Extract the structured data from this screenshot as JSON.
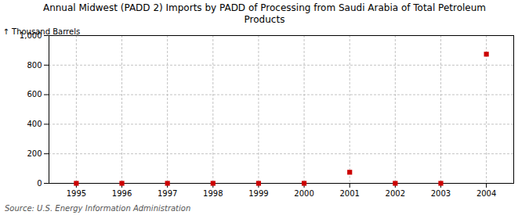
{
  "chart_data": {
    "type": "scatter",
    "title": "Annual Midwest (PADD 2) Imports by PADD of Processing from Saudi Arabia of Total Petroleum\nProducts",
    "ylabel": "Thousand Barrels",
    "annotations": [
      "Source: U.S. Energy Information Administration"
    ],
    "x": [
      1995,
      1996,
      1997,
      1998,
      1999,
      2000,
      2001,
      2002,
      2003,
      2004
    ],
    "values": [
      0,
      0,
      0,
      0,
      0,
      0,
      75,
      0,
      0,
      874
    ],
    "color": "#cc0000",
    "marker": "square",
    "xlim": [
      1994.4,
      2004.6
    ],
    "xticks": [
      1995,
      1996,
      1997,
      1998,
      1999,
      2000,
      2001,
      2002,
      2003,
      2004
    ],
    "ylim": [
      0,
      1000
    ],
    "yticks": [
      0,
      200,
      400,
      600,
      800,
      {
        "value": 1000,
        "label": "1,000"
      }
    ],
    "grid": true
  }
}
